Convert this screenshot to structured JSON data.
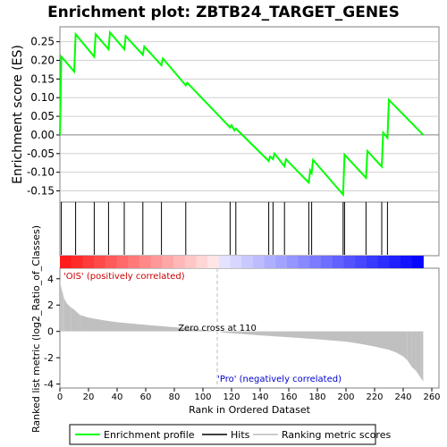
{
  "title": "Enrichment plot: ZBTB24_TARGET_GENES",
  "chart_data": [
    {
      "panel": "enrichment",
      "type": "line",
      "ylabel": "Enrichment score (ES)",
      "ylim": [
        -0.18,
        0.29
      ],
      "yticks": [
        -0.15,
        -0.1,
        -0.05,
        0.0,
        0.05,
        0.1,
        0.15,
        0.2,
        0.25
      ],
      "ytick_labels": [
        "-0.15",
        "-0.10",
        "-0.05",
        "0.00",
        "0.05",
        "0.10",
        "0.15",
        "0.20",
        "0.25"
      ],
      "grid": true,
      "color": "#00ff00",
      "x": [
        0,
        1,
        10,
        11,
        24,
        25,
        34,
        35,
        45,
        46,
        58,
        59,
        71,
        72,
        88,
        89,
        119,
        120,
        122,
        123,
        146,
        147,
        149,
        150,
        157,
        158,
        174,
        175,
        176,
        177,
        198,
        199,
        214,
        215,
        225,
        226,
        229,
        230,
        254
      ],
      "y": [
        0.0,
        0.21,
        0.17,
        0.27,
        0.21,
        0.27,
        0.23,
        0.275,
        0.23,
        0.265,
        0.215,
        0.237,
        0.187,
        0.205,
        0.133,
        0.14,
        0.02,
        0.026,
        0.012,
        0.017,
        -0.07,
        -0.058,
        -0.065,
        -0.05,
        -0.084,
        -0.065,
        -0.128,
        -0.095,
        -0.102,
        -0.067,
        -0.16,
        -0.053,
        -0.115,
        -0.043,
        -0.085,
        0.006,
        -0.008,
        0.094,
        0.0
      ]
    },
    {
      "panel": "hits",
      "type": "scatter",
      "hit_ranks": [
        1,
        11,
        24,
        34,
        45,
        58,
        71,
        88,
        119,
        123,
        146,
        149,
        157,
        174,
        176,
        198,
        199,
        214,
        225,
        229
      ]
    },
    {
      "panel": "ranked_list",
      "type": "bar",
      "ylabel": "Ranked list metric (log2_Ratio_of_Classes)",
      "xlabel": "Rank in Ordered Dataset",
      "xlim": [
        0,
        265
      ],
      "xticks": [
        0,
        20,
        40,
        60,
        80,
        100,
        120,
        140,
        160,
        180,
        200,
        220,
        240,
        260
      ],
      "ylim": [
        -4.3,
        4.8
      ],
      "yticks": [
        -4,
        -2,
        0,
        2,
        4
      ],
      "x": [
        0,
        1,
        2,
        3,
        5,
        8,
        10,
        14,
        20,
        30,
        40,
        60,
        80,
        100,
        109,
        110,
        115,
        140,
        160,
        180,
        200,
        210,
        220,
        230,
        235,
        240,
        243,
        246,
        249,
        252,
        254
      ],
      "values": [
        3.9,
        3.3,
        2.9,
        2.5,
        2.1,
        1.8,
        1.65,
        1.25,
        1.05,
        0.85,
        0.7,
        0.5,
        0.32,
        0.12,
        0.02,
        0.0,
        -0.1,
        -0.3,
        -0.45,
        -0.6,
        -0.78,
        -0.95,
        -1.15,
        -1.4,
        -1.6,
        -1.9,
        -2.2,
        -2.7,
        -3.0,
        -3.5,
        -3.8
      ],
      "zero_cross_label": "Zero cross at 110",
      "zero_cross_rank": 110,
      "positive_label": "'OIS' (positively correlated)",
      "negative_label": "'Pro' (negatively correlated)",
      "positive_color": "#ff0000",
      "negative_color": "#0000ff"
    }
  ],
  "legend": {
    "items": [
      {
        "label": "Enrichment profile",
        "color": "#00ff00"
      },
      {
        "label": "Hits",
        "color": "#000000"
      },
      {
        "label": "Ranking metric scores",
        "color": "#cccccc"
      }
    ]
  }
}
